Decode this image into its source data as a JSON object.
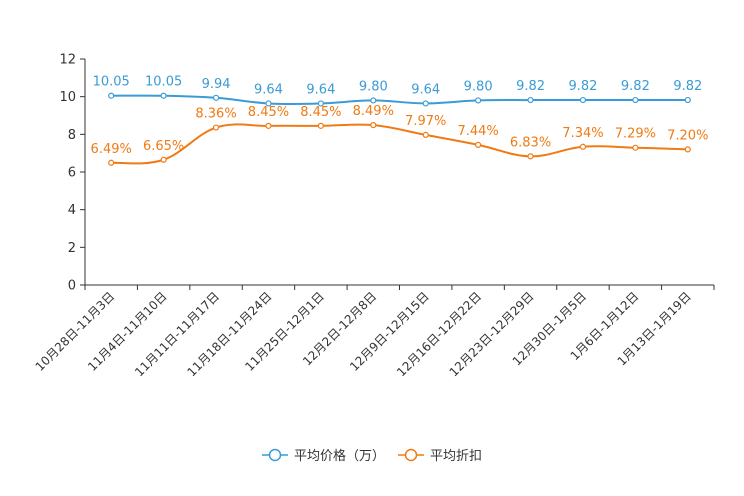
{
  "chart_data": {
    "type": "line",
    "title": "",
    "xlabel": "",
    "ylabel": "",
    "ylim": [
      0,
      12
    ],
    "yticks": [
      0,
      2,
      4,
      6,
      8,
      10,
      12
    ],
    "grid": false,
    "legend_position": "bottom-center",
    "categories": [
      "10月28日-11月3日",
      "11月4日-11月10日",
      "11月11日-11月17日",
      "11月18日-11月24日",
      "11月25日-12月1日",
      "12月2日-12月8日",
      "12月9日-12月15日",
      "12月16日-12月22日",
      "12月23日-12月29日",
      "12月30日-1月5日",
      "1月6日-1月12日",
      "1月13日-1月19日"
    ],
    "series": [
      {
        "name": "平均价格（万）",
        "color": "#3a9bd5",
        "values": [
          10.05,
          10.05,
          9.94,
          9.64,
          9.64,
          9.8,
          9.64,
          9.8,
          9.82,
          9.82,
          9.82,
          9.82
        ],
        "labels": [
          "10.05",
          "10.05",
          "9.94",
          "9.64",
          "9.64",
          "9.80",
          "9.64",
          "9.80",
          "9.82",
          "9.82",
          "9.82",
          "9.82"
        ]
      },
      {
        "name": "平均折扣",
        "color": "#f07a14",
        "values": [
          6.49,
          6.65,
          8.36,
          8.45,
          8.45,
          8.49,
          7.97,
          7.44,
          6.83,
          7.34,
          7.29,
          7.2
        ],
        "labels": [
          "6.49%",
          "6.65%",
          "8.36%",
          "8.45%",
          "8.45%",
          "8.49%",
          "7.97%",
          "7.44%",
          "6.83%",
          "7.34%",
          "7.29%",
          "7.20%"
        ]
      }
    ]
  }
}
